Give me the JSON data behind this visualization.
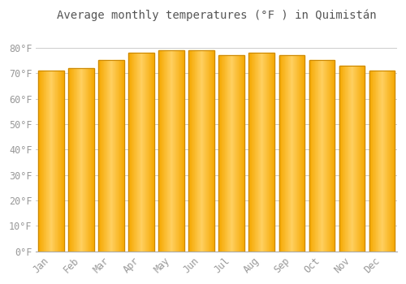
{
  "title": "Average monthly temperatures (°F ) in Quimistán",
  "months": [
    "Jan",
    "Feb",
    "Mar",
    "Apr",
    "May",
    "Jun",
    "Jul",
    "Aug",
    "Sep",
    "Oct",
    "Nov",
    "Dec"
  ],
  "values": [
    71,
    72,
    75,
    78,
    79,
    79,
    77,
    78,
    77,
    75,
    73,
    71
  ],
  "bar_color_center": "#FFD060",
  "bar_color_edge": "#F5A800",
  "bar_border_color": "#CC8800",
  "background_color": "#FFFFFF",
  "grid_color": "#CCCCCC",
  "tick_label_color": "#999999",
  "title_color": "#555555",
  "ylim": [
    0,
    88
  ],
  "yticks": [
    0,
    10,
    20,
    30,
    40,
    50,
    60,
    70,
    80
  ],
  "title_fontsize": 10,
  "tick_fontsize": 8.5,
  "bar_width": 0.85
}
